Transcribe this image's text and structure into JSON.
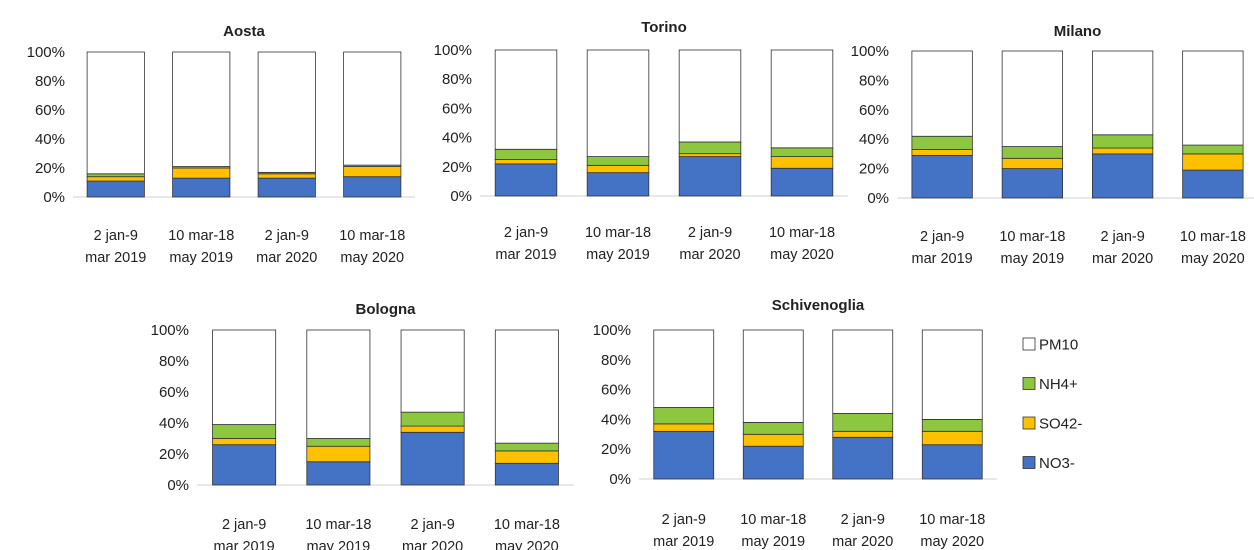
{
  "chart_data": [
    {
      "type": "bar",
      "stacked": "percent",
      "title": "Aosta",
      "categories": [
        [
          "2 jan-9",
          "mar 2019"
        ],
        [
          "10 mar-18",
          "may 2019"
        ],
        [
          "2 jan-9",
          "mar 2020"
        ],
        [
          "10 mar-18",
          "may 2020"
        ]
      ],
      "ylim": [
        0,
        100
      ],
      "yticks": [
        "0%",
        "20%",
        "40%",
        "60%",
        "80%",
        "100%"
      ],
      "series": [
        {
          "name": "NO3-",
          "values": [
            11,
            13,
            13,
            14
          ]
        },
        {
          "name": "SO42-",
          "values": [
            3,
            7,
            3,
            7
          ]
        },
        {
          "name": "NH4+",
          "values": [
            2,
            1,
            1,
            1
          ]
        },
        {
          "name": "PM10",
          "values": [
            84,
            79,
            83,
            78
          ]
        }
      ]
    },
    {
      "type": "bar",
      "stacked": "percent",
      "title": "Torino",
      "categories": [
        [
          "2 jan-9",
          "mar 2019"
        ],
        [
          "10 mar-18",
          "may 2019"
        ],
        [
          "2 jan-9",
          "mar 2020"
        ],
        [
          "10 mar-18",
          "may 2020"
        ]
      ],
      "ylim": [
        0,
        100
      ],
      "yticks": [
        "0%",
        "20%",
        "40%",
        "60%",
        "80%",
        "100%"
      ],
      "series": [
        {
          "name": "NO3-",
          "values": [
            22,
            16,
            27,
            19
          ]
        },
        {
          "name": "SO42-",
          "values": [
            3,
            5,
            2,
            8
          ]
        },
        {
          "name": "NH4+",
          "values": [
            7,
            6,
            8,
            6
          ]
        },
        {
          "name": "PM10",
          "values": [
            68,
            73,
            63,
            67
          ]
        }
      ]
    },
    {
      "type": "bar",
      "stacked": "percent",
      "title": "Milano",
      "categories": [
        [
          "2 jan-9",
          "mar 2019"
        ],
        [
          "10 mar-18",
          "may 2019"
        ],
        [
          "2 jan-9",
          "mar 2020"
        ],
        [
          "10 mar-18",
          "may 2020"
        ]
      ],
      "ylim": [
        0,
        100
      ],
      "yticks": [
        "0%",
        "20%",
        "40%",
        "60%",
        "80%",
        "100%"
      ],
      "series": [
        {
          "name": "NO3-",
          "values": [
            29,
            20,
            30,
            19
          ]
        },
        {
          "name": "SO42-",
          "values": [
            4,
            7,
            4,
            11
          ]
        },
        {
          "name": "NH4+",
          "values": [
            9,
            8,
            9,
            6
          ]
        },
        {
          "name": "PM10",
          "values": [
            58,
            65,
            57,
            64
          ]
        }
      ]
    },
    {
      "type": "bar",
      "stacked": "percent",
      "title": "Bologna",
      "categories": [
        [
          "2 jan-9",
          "mar 2019"
        ],
        [
          "10 mar-18",
          "may 2019"
        ],
        [
          "2 jan-9",
          "mar 2020"
        ],
        [
          "10 mar-18",
          "may 2020"
        ]
      ],
      "ylim": [
        0,
        100
      ],
      "yticks": [
        "0%",
        "20%",
        "40%",
        "60%",
        "80%",
        "100%"
      ],
      "series": [
        {
          "name": "NO3-",
          "values": [
            26,
            15,
            34,
            14
          ]
        },
        {
          "name": "SO42-",
          "values": [
            4,
            10,
            4,
            8
          ]
        },
        {
          "name": "NH4+",
          "values": [
            9,
            5,
            9,
            5
          ]
        },
        {
          "name": "PM10",
          "values": [
            61,
            70,
            53,
            73
          ]
        }
      ]
    },
    {
      "type": "bar",
      "stacked": "percent",
      "title": "Schivenoglia",
      "categories": [
        [
          "2 jan-9",
          "mar 2019"
        ],
        [
          "10 mar-18",
          "may 2019"
        ],
        [
          "2 jan-9",
          "mar 2020"
        ],
        [
          "10 mar-18",
          "may 2020"
        ]
      ],
      "ylim": [
        0,
        100
      ],
      "yticks": [
        "0%",
        "20%",
        "40%",
        "60%",
        "80%",
        "100%"
      ],
      "series": [
        {
          "name": "NO3-",
          "values": [
            32,
            22,
            28,
            23
          ]
        },
        {
          "name": "SO42-",
          "values": [
            5,
            8,
            4,
            9
          ]
        },
        {
          "name": "NH4+",
          "values": [
            11,
            8,
            12,
            8
          ]
        },
        {
          "name": "PM10",
          "values": [
            52,
            62,
            56,
            60
          ]
        }
      ]
    }
  ],
  "legend": {
    "placement": "right",
    "entries": [
      {
        "name": "PM10",
        "color": "#ffffff"
      },
      {
        "name": "NH4+",
        "color": "#8dc63f"
      },
      {
        "name": "SO42-",
        "color": "#ffc000"
      },
      {
        "name": "NO3-",
        "color": "#4472c4"
      }
    ]
  },
  "colors": {
    "NO3-": "#4472c4",
    "SO42-": "#ffc000",
    "NH4+": "#8dc63f",
    "PM10": "#ffffff",
    "axis": "#d0d0d0",
    "outline": "#333333"
  }
}
